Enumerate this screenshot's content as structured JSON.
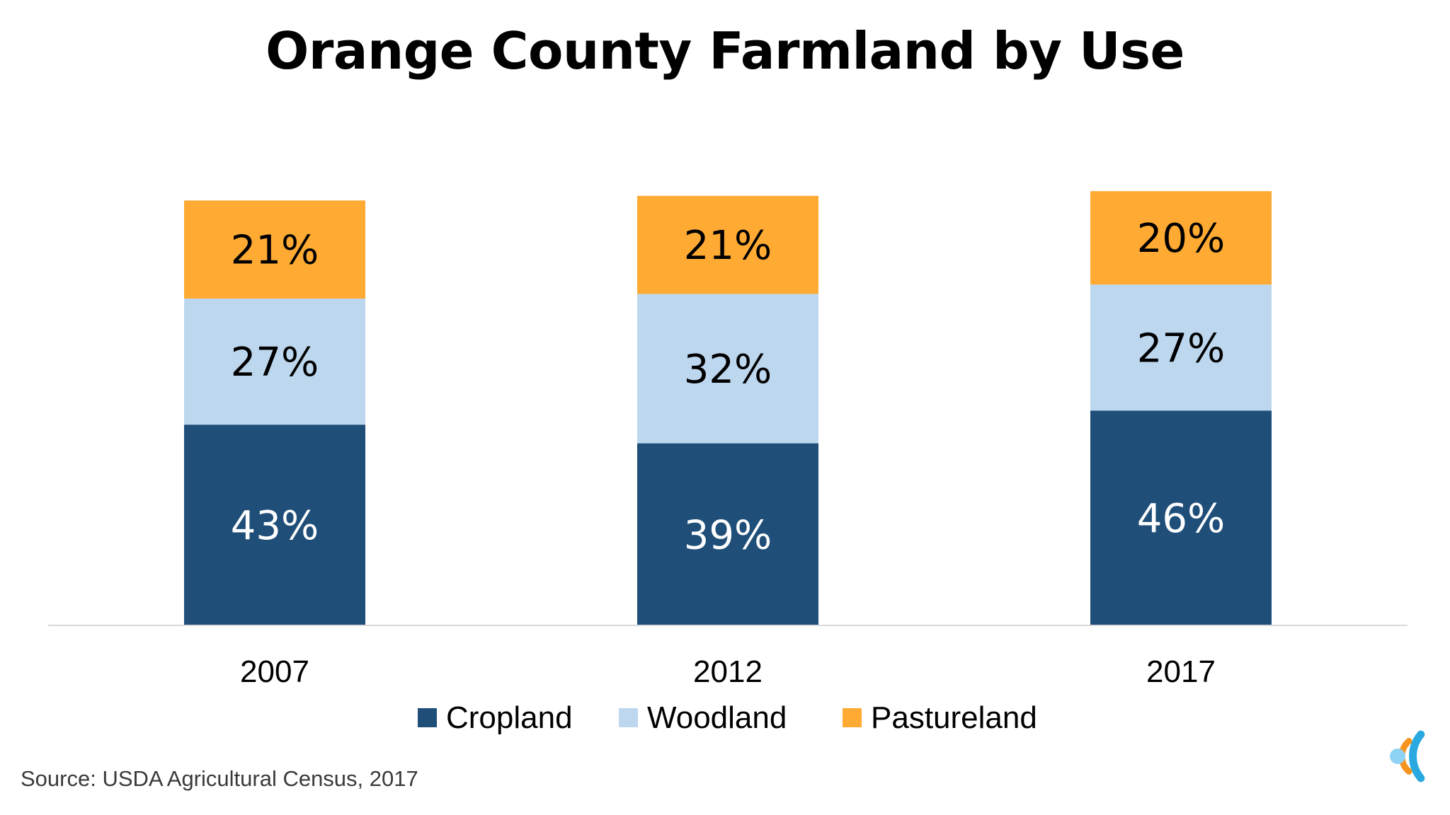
{
  "chart_data": {
    "type": "bar",
    "stacked": true,
    "title": "Orange County Farmland by Use",
    "categories": [
      "2007",
      "2012",
      "2017"
    ],
    "series": [
      {
        "name": "Cropland",
        "values": [
          43,
          39,
          46
        ],
        "labels": [
          "43%",
          "39%",
          "46%"
        ],
        "color": "#1f4e79"
      },
      {
        "name": "Woodland",
        "values": [
          27,
          32,
          27
        ],
        "labels": [
          "27%",
          "32%",
          "27%"
        ],
        "color": "#bdd7ee"
      },
      {
        "name": "Pastureland",
        "values": [
          21,
          21,
          20
        ],
        "labels": [
          "21%",
          "21%",
          "20%"
        ],
        "color": "#ffaa33"
      }
    ],
    "ylim": [
      0,
      100
    ],
    "grid": false,
    "legend_position": "bottom",
    "source": "Source: USDA Agricultural Census, 2017"
  },
  "colors": {
    "axis_line": "#d9d9d9",
    "dark_label": "#000000",
    "light_label": "#ffffff",
    "logo_blue": "#29a9e0",
    "logo_orange": "#f7941d",
    "logo_light_blue": "#8fd3f4"
  },
  "logo": {
    "icon": "cscc-circle-logo"
  }
}
